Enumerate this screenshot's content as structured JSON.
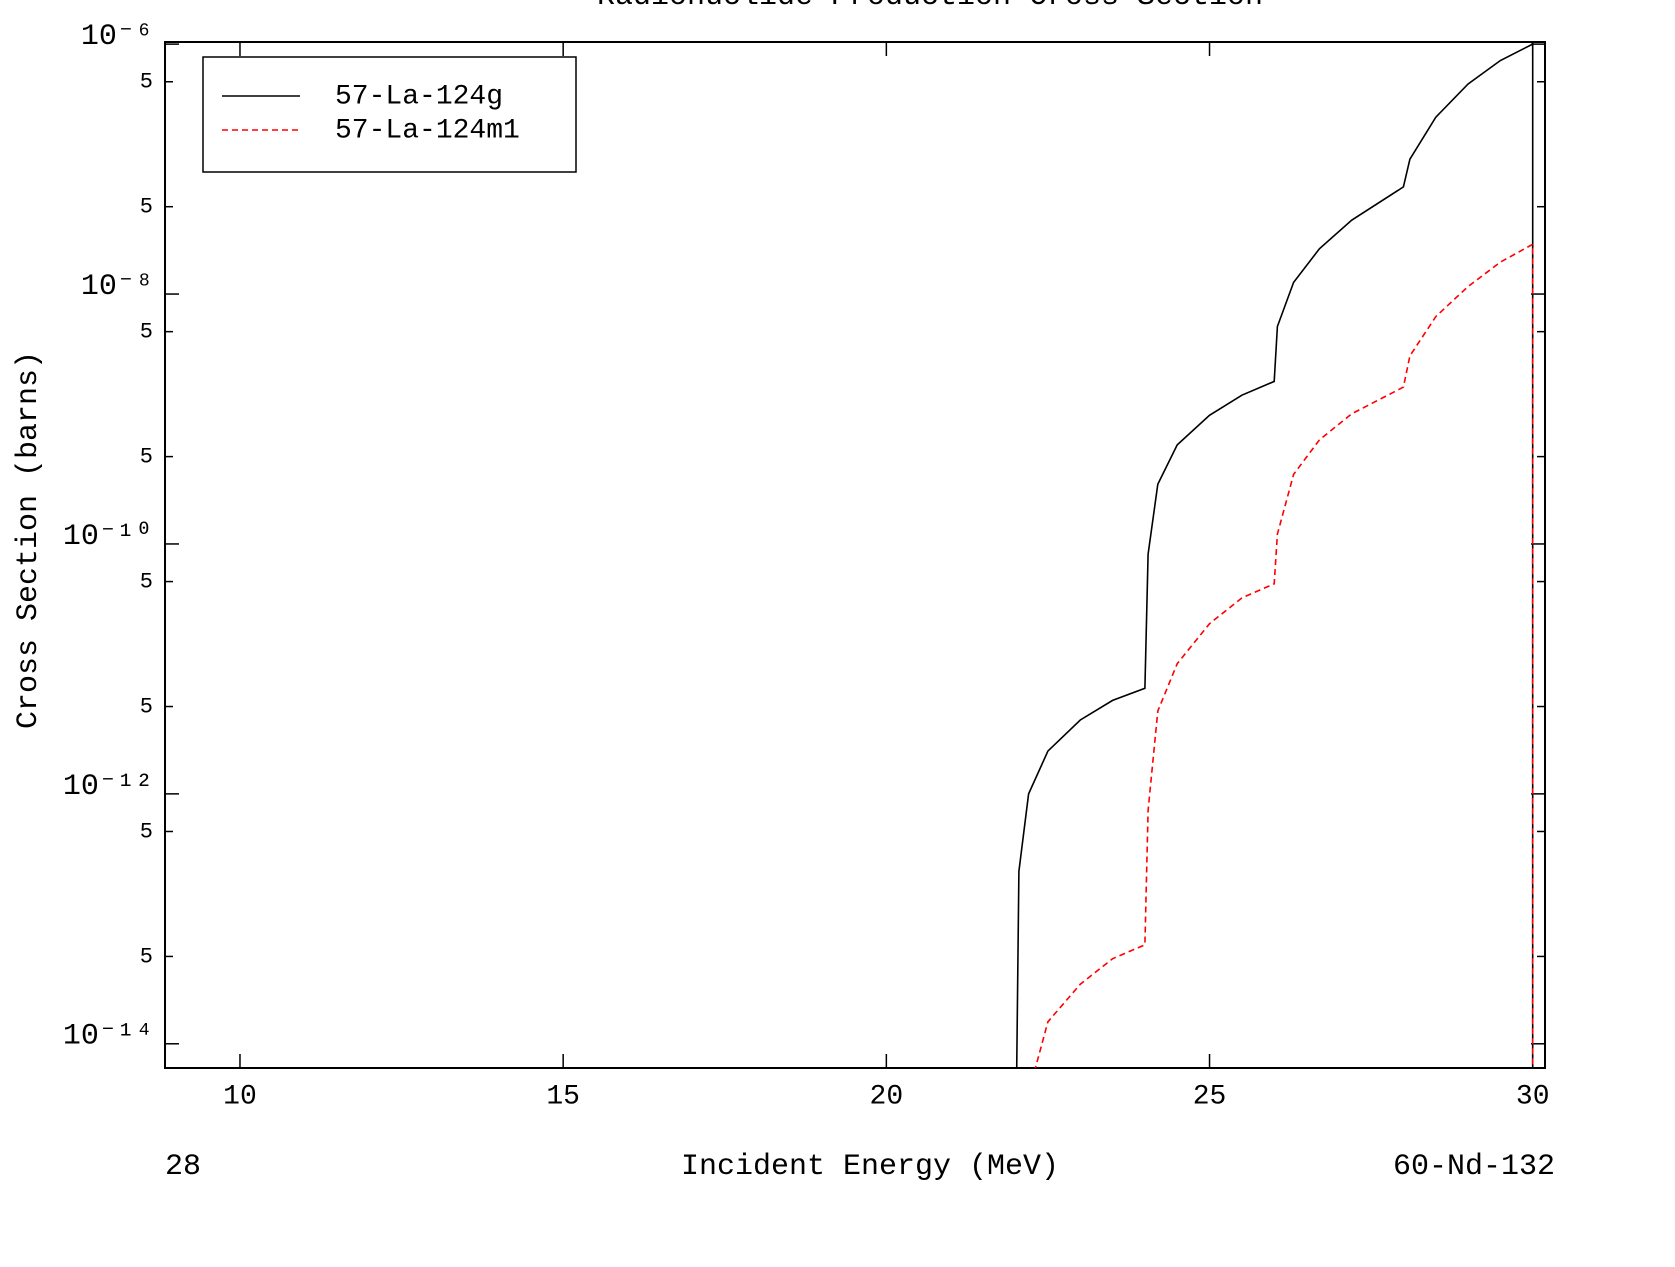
{
  "chart_data": {
    "type": "line",
    "title": "Radionuclide Production Cross Section",
    "xlabel": "Incident Energy (MeV)",
    "ylabel": "Cross Section (barns)",
    "footer_left": "28",
    "footer_right": "60-Nd-132",
    "xlim": [
      8.84,
      30.19
    ],
    "xticks": [
      10,
      15,
      20,
      25,
      30
    ],
    "ylim": [
      6.4e-15,
      1.04e-06
    ],
    "ylog": true,
    "yticks": [
      {
        "value": 1e-06,
        "label": "10⁻⁶"
      },
      {
        "value": 5e-07,
        "label": "5"
      },
      {
        "value": 5e-08,
        "label": "5"
      },
      {
        "value": 1e-08,
        "label": "10⁻⁸"
      },
      {
        "value": 5e-09,
        "label": "5"
      },
      {
        "value": 5e-10,
        "label": "5"
      },
      {
        "value": 1e-10,
        "label": "10⁻¹⁰"
      },
      {
        "value": 5e-11,
        "label": "5"
      },
      {
        "value": 5e-12,
        "label": "5"
      },
      {
        "value": 1e-12,
        "label": "10⁻¹²"
      },
      {
        "value": 5e-13,
        "label": "5"
      },
      {
        "value": 5e-14,
        "label": "5"
      },
      {
        "value": 1e-14,
        "label": "10⁻¹⁴"
      }
    ],
    "legend": "upper left",
    "series": [
      {
        "name": "57-La-124g",
        "color": "#000000",
        "dash": false,
        "x": [
          22.0,
          22.05,
          22.2,
          22.5,
          23,
          23.5,
          24,
          24.05,
          24.2,
          24.5,
          25,
          25.5,
          26,
          26.05,
          26.3,
          26.7,
          27.2,
          28,
          28.1,
          28.5,
          29,
          29.5,
          30,
          30
        ],
        "values": [
          1e-15,
          2.4e-13,
          1e-12,
          2.2e-12,
          3.9e-12,
          5.6e-12,
          7e-12,
          8.3e-11,
          3e-10,
          6.2e-10,
          1.07e-09,
          1.55e-09,
          2e-09,
          5.5e-09,
          1.24e-08,
          2.3e-08,
          3.9e-08,
          7.2e-08,
          1.2e-07,
          2.6e-07,
          4.8e-07,
          7.4e-07,
          1e-06,
          1e-15
        ]
      },
      {
        "name": "57-La-124m1",
        "color": "#ff0000",
        "dash": true,
        "x": [
          22.25,
          22.5,
          23,
          23.5,
          24,
          24.05,
          24.2,
          24.5,
          25,
          25.5,
          26,
          26.05,
          26.3,
          26.7,
          27.2,
          28,
          28.1,
          28.5,
          29,
          29.5,
          30,
          30
        ],
        "values": [
          5e-15,
          1.5e-14,
          3e-14,
          4.8e-14,
          6.2e-14,
          7.4e-13,
          4.6e-12,
          1.1e-11,
          2.3e-11,
          3.7e-11,
          4.8e-11,
          1.2e-10,
          3.6e-10,
          6.8e-10,
          1.1e-09,
          1.8e-09,
          3.2e-09,
          6.6e-09,
          1.15e-08,
          1.8e-08,
          2.5e-08,
          1e-15
        ]
      }
    ]
  }
}
